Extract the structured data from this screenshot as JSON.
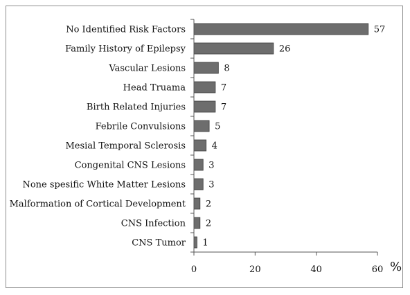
{
  "chart_data": {
    "type": "bar",
    "orientation": "horizontal",
    "categories": [
      "No Identified Risk Factors",
      "Family History of Epilepsy",
      "Vascular Lesions",
      "Head Truama",
      "Birth Related Injuries",
      "Febrile Convulsions",
      "Mesial Temporal Sclerosis",
      "Congenital CNS Lesions",
      "None spesific White Matter Lesions",
      "Malformation of Cortical Development",
      "CNS Infection",
      "CNS Tumor"
    ],
    "values": [
      57,
      26,
      8,
      7,
      7,
      5,
      4,
      3,
      3,
      2,
      2,
      1
    ],
    "data_labels": [
      "57",
      "26",
      "8",
      "7",
      "7",
      "5",
      "4",
      "3",
      "3",
      "2",
      "2",
      "1"
    ],
    "xlim": [
      0,
      60
    ],
    "xticks": [
      "0",
      "20",
      "40",
      "60"
    ],
    "xunit": "%",
    "bar_color": "#6d6d6d",
    "grid": false,
    "legend": "none"
  }
}
